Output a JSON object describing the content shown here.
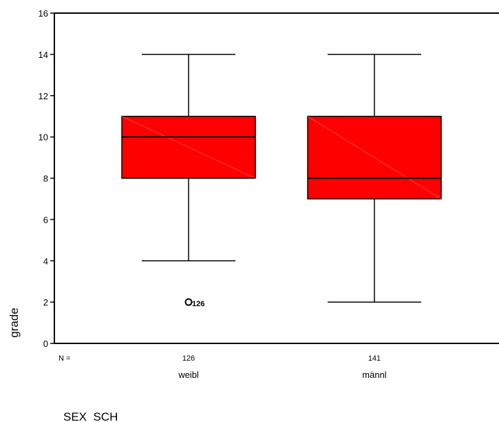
{
  "chart_data": {
    "type": "box",
    "ylabel": "grade",
    "xlabel": "SEX  SCH",
    "ylim": [
      0,
      16
    ],
    "yticks": [
      "0",
      "2",
      "4",
      "6",
      "8",
      "10",
      "12",
      "14",
      "16"
    ],
    "n_label": "N =",
    "box_color": "#ff0000",
    "categories": [
      {
        "name": "weibl",
        "n": "126",
        "min": 4,
        "q1": 8,
        "median": 10,
        "q3": 11,
        "max": 14,
        "outliers": [
          {
            "value": 2,
            "label": "126"
          }
        ]
      },
      {
        "name": "männl",
        "n": "141",
        "min": 2,
        "q1": 7,
        "median": 8,
        "q3": 11,
        "max": 14,
        "outliers": []
      }
    ]
  }
}
